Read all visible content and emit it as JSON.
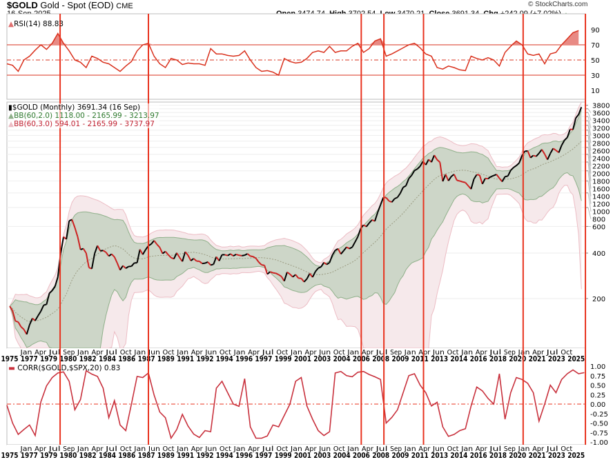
{
  "header": {
    "symbol": "$GOLD",
    "name": "Gold - Spot (EOD)",
    "exchange": "CME",
    "date": "16-Sep-2025",
    "watermark": "© StockCharts.com",
    "open_label": "Open",
    "open": "3474.74",
    "high_label": "High",
    "high": "3702.54",
    "low_label": "Low",
    "low": "3470.21",
    "close_label": "Close",
    "close": "3691.34",
    "chg_label": "Chg",
    "chg": "+242.09 (+7.02%)"
  },
  "colors": {
    "event_line": "#e8321e",
    "rsi": "#d9301c",
    "corr": "#c8303c",
    "bb2_fill": "#cdd6c8",
    "bb2_line": "#8fb08a",
    "bb3_fill": "#f6e9eb",
    "bb3_line": "#ecbcc4",
    "up": "#000000",
    "down": "#cc2020"
  },
  "chart_data": [
    {
      "type": "line",
      "panel": "RSI",
      "legend": "RSI(14) 88.83",
      "ylim": [
        0,
        100
      ],
      "yticks": [
        10,
        30,
        50,
        70,
        90
      ],
      "levels": [
        30,
        50,
        70
      ],
      "x_start": 1975,
      "x_step": 0.5,
      "values": [
        45,
        43,
        35,
        50,
        55,
        63,
        70,
        64,
        72,
        85,
        72,
        62,
        50,
        47,
        40,
        55,
        52,
        47,
        45,
        40,
        35,
        42,
        48,
        62,
        70,
        72,
        55,
        45,
        40,
        52,
        50,
        44,
        46,
        45,
        45,
        43,
        65,
        58,
        58,
        56,
        55,
        56,
        62,
        50,
        40,
        35,
        36,
        34,
        30,
        52,
        48,
        46,
        47,
        52,
        60,
        62,
        60,
        68,
        60,
        62,
        62,
        68,
        72,
        60,
        65,
        75,
        78,
        55,
        58,
        62,
        66,
        70,
        72,
        66,
        58,
        55,
        40,
        38,
        42,
        40,
        37,
        36,
        55,
        52,
        50,
        53,
        50,
        42,
        60,
        68,
        75,
        70,
        58,
        56,
        58,
        45,
        58,
        60,
        70,
        78,
        86,
        88.83
      ]
    },
    {
      "type": "candlestick",
      "panel": "price",
      "scale": "log",
      "title": "$GOLD (Monthly) 3691.34 (16 Sep)",
      "legend": [
        "BB(60,2.0) 1118.00 - 2165.99 - 3213.97",
        "BB(60,3.0) 594.01 - 2165.99 - 3737.97"
      ],
      "yticks": [
        200,
        400,
        600,
        800,
        1000,
        1200,
        1400,
        1600,
        1800,
        2000,
        2200,
        2400,
        2600,
        2800,
        3000,
        3200,
        3400,
        3600,
        3800
      ],
      "x_start": 1975.25,
      "x_step": 0.25,
      "closes": [
        178,
        166,
        142,
        140,
        130,
        125,
        116,
        134,
        148,
        143,
        154,
        165,
        181,
        183,
        217,
        226,
        240,
        278,
        397,
        512,
        494,
        653,
        666,
        590,
        513,
        422,
        428,
        400,
        320,
        315,
        397,
        448,
        414,
        416,
        405,
        382,
        394,
        377,
        343,
        309,
        330,
        317,
        326,
        327,
        344,
        345,
        423,
        391,
        421,
        447,
        459,
        484,
        457,
        436,
        397,
        410,
        390,
        373,
        366,
        401,
        374,
        352,
        408,
        386,
        356,
        368,
        354,
        353,
        341,
        343,
        349,
        333,
        337,
        378,
        355,
        390,
        390,
        385,
        395,
        383,
        392,
        387,
        384,
        387,
        396,
        382,
        379,
        369,
        348,
        334,
        332,
        290,
        301,
        296,
        294,
        288,
        280,
        261,
        299,
        290,
        278,
        288,
        273,
        272,
        258,
        270,
        293,
        277,
        302,
        318,
        324,
        347,
        336,
        346,
        388,
        417,
        427,
        394,
        415,
        438,
        428,
        437,
        473,
        513,
        582,
        614,
        598,
        632,
        663,
        650,
        743,
        834,
        933,
        930,
        884,
        869,
        916,
        934,
        996,
        1088,
        1115,
        1244,
        1307,
        1405,
        1439,
        1500,
        1620,
        1531,
        1662,
        1598,
        1776,
        1657,
        1595,
        1192,
        1326,
        1202,
        1284,
        1327,
        1211,
        1199,
        1183,
        1171,
        1114,
        1060,
        1234,
        1321,
        1313,
        1146,
        1247,
        1241,
        1280,
        1303,
        1325,
        1250,
        1187,
        1282,
        1292,
        1409,
        1472,
        1517,
        1577,
        1768,
        1886,
        1895,
        1708,
        1770,
        1743,
        1829,
        1937,
        1807,
        1660,
        1824,
        1969,
        1912,
        1849,
        2063,
        2230,
        2327,
        2635,
        2624,
        3124,
        3303,
        3691.34
      ]
    },
    {
      "type": "line",
      "panel": "CORR",
      "legend": "CORR($GOLD,$SPX,20) 0.83",
      "ylim": [
        -1,
        1
      ],
      "yticks": [
        "1.00",
        "0.75",
        "0.50",
        "0.25",
        "0.00",
        "-0.25",
        "-0.50",
        "-0.75",
        "-1.00"
      ],
      "x_start": 1975,
      "x_step": 0.5,
      "values": [
        -0.03,
        -0.5,
        -0.8,
        -0.67,
        -0.55,
        -0.83,
        0.06,
        0.48,
        0.7,
        0.82,
        0.85,
        0.6,
        -0.15,
        0.12,
        0.88,
        0.79,
        0.73,
        0.42,
        -0.36,
        0.09,
        -0.55,
        -0.7,
        0,
        0.73,
        0.7,
        0.82,
        0.24,
        -0.21,
        -0.36,
        -0.9,
        -0.67,
        -0.27,
        -0.58,
        -0.79,
        -0.88,
        -0.7,
        -0.73,
        0.42,
        0.6,
        0.3,
        0,
        -0.06,
        0.67,
        -0.6,
        -0.9,
        -0.9,
        -0.84,
        -0.55,
        -0.6,
        -0.3,
        0,
        0.6,
        0.7,
        -0.05,
        -0.4,
        -0.7,
        -0.83,
        -0.73,
        0.82,
        0.86,
        0.75,
        0.72,
        0.84,
        0.86,
        0.78,
        0.72,
        0.65,
        -0.5,
        -0.35,
        -0.15,
        0.3,
        0.75,
        0.8,
        0.5,
        0.3,
        -0.05,
        0.05,
        -0.6,
        -0.85,
        -0.8,
        -0.7,
        -0.65,
        -0.05,
        0.45,
        0.35,
        0.15,
        0,
        0.8,
        -0.4,
        0.3,
        0.7,
        0.65,
        0.55,
        0.3,
        -0.45,
        0.0,
        0.5,
        0.3,
        0.65,
        0.8,
        0.9,
        0.8,
        0.83
      ]
    }
  ],
  "event_lines": [
    1979.7,
    1987.5,
    2006.3,
    2008.3,
    2011.8,
    2020.6,
    2026.1
  ],
  "x_axis": {
    "years": [
      "1975",
      "1977",
      "1979",
      "1980",
      "1982",
      "1984",
      "1986",
      "1987",
      "1989",
      "1991",
      "1992",
      "1994",
      "1996",
      "1997",
      "1999",
      "2001",
      "2003",
      "2004",
      "2006",
      "2008",
      "2009",
      "2011",
      "2013",
      "2014",
      "2016",
      "2018",
      "2020",
      "2021",
      "2023",
      "2025"
    ],
    "months": [
      "Jan",
      "Apr",
      "Jul",
      "Sep",
      "Jan",
      "Apr",
      "Jul",
      "Oct",
      "Jan",
      "Jun",
      "Oct",
      "Jan",
      "Apr",
      "Jun",
      "Oct",
      "Jan",
      "Apr",
      "Jul",
      "Oct",
      "Jan",
      "Apr",
      "Jun",
      "Oct",
      "Jan",
      "Apr",
      "Jul",
      "Sep",
      "Jan",
      "Apr",
      "Jun",
      "Oct",
      "Jan",
      "Apr",
      "Jul",
      "Sep",
      "Jan",
      "Apr",
      "Jul",
      "Oct"
    ]
  }
}
